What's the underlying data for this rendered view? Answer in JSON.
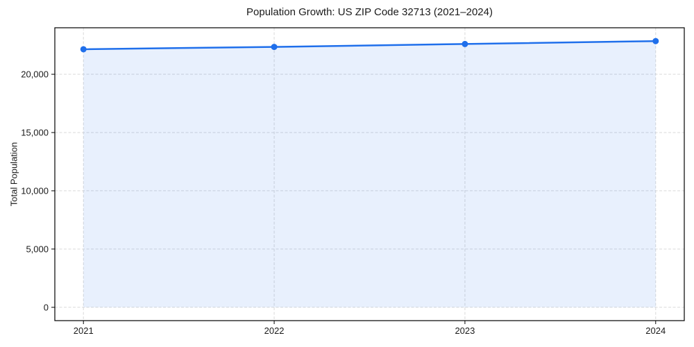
{
  "figure": {
    "title": "Population Growth: US ZIP Code 32713 (2021–2024)",
    "ylabel": "Total Population"
  },
  "chart_data": {
    "type": "area",
    "title": "Population Growth: US ZIP Code 32713 (2021–2024)",
    "xlabel": "",
    "ylabel": "Total Population",
    "x": [
      2021,
      2022,
      2023,
      2024
    ],
    "categories": [
      "2021",
      "2022",
      "2023",
      "2024"
    ],
    "series": [
      {
        "name": "Total Population",
        "values": [
          22150,
          22350,
          22600,
          22850
        ]
      }
    ],
    "fill_baseline": 0,
    "xlim": [
      2020.85,
      2024.15
    ],
    "ylim": [
      -1143,
      23993
    ],
    "xticks": [
      2021,
      2022,
      2023,
      2024
    ],
    "xtick_labels": [
      "2021",
      "2022",
      "2023",
      "2024"
    ],
    "yticks": [
      0,
      5000,
      10000,
      15000,
      20000
    ],
    "ytick_labels": [
      "0",
      "5,000",
      "10,000",
      "15,000",
      "20,000"
    ],
    "grid": true,
    "grid_style": "dashed",
    "legend": "none",
    "marker": "circle",
    "colors": {
      "line": "#1f6feb",
      "marker": "#1f6feb",
      "fill": "rgba(31,111,235,0.10)",
      "grid": "#d9d9d9",
      "axis": "#000000",
      "text": "#1a1a1a",
      "background": "#ffffff"
    }
  }
}
